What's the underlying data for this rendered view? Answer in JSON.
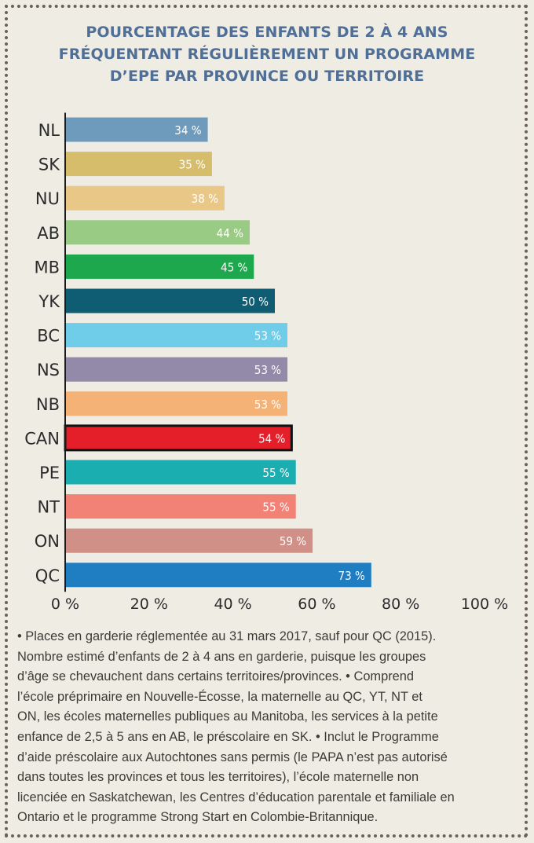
{
  "title_lines": [
    "POURCENTAGE DES ENFANTS DE 2 À 4 ANS",
    "FRÉQUENTANT RÉGULIÈREMENT UN PROGRAMME",
    "D’EPE PAR PROVINCE OU TERRITOIRE"
  ],
  "chart_data": {
    "type": "bar",
    "orientation": "horizontal",
    "title": "POURCENTAGE DES ENFANTS DE 2 À 4 ANS FRÉQUENTANT RÉGULIÈREMENT UN PROGRAMME D’EPE PAR PROVINCE OU TERRITOIRE",
    "categories": [
      "NL",
      "SK",
      "NU",
      "AB",
      "MB",
      "YK",
      "BC",
      "NS",
      "NB",
      "CAN",
      "PE",
      "NT",
      "ON",
      "QC"
    ],
    "values": [
      34,
      35,
      38,
      44,
      45,
      50,
      53,
      53,
      53,
      54,
      55,
      55,
      59,
      73
    ],
    "value_labels": [
      "34 %",
      "35 %",
      "38 %",
      "44 %",
      "45 %",
      "50 %",
      "53 %",
      "53 %",
      "53 %",
      "54 %",
      "55 %",
      "55 %",
      "59 %",
      "73 %"
    ],
    "colors": [
      "#6e9bbb",
      "#d6bd6b",
      "#e9c787",
      "#9acb84",
      "#1ea84e",
      "#0f5d73",
      "#6fcde9",
      "#928aa8",
      "#f5b277",
      "#e41f2a",
      "#1aaeb0",
      "#f28275",
      "#d19087",
      "#1f7dc1"
    ],
    "highlight": "CAN",
    "highlight_border": "#111111",
    "xlim": [
      0,
      100
    ],
    "xticks": [
      0,
      20,
      40,
      60,
      80,
      100
    ],
    "xtick_labels": [
      "0 %",
      "20 %",
      "40 %",
      "60 %",
      "80 %",
      "100 %"
    ],
    "grid": false,
    "xlabel": "",
    "ylabel": ""
  },
  "notes": [
    "• Places en garderie réglementée au 31 mars 2017, sauf pour QC (2015).",
    "Nombre estimé d’enfants de 2 à 4 ans en garderie, puisque les groupes",
    "d’âge se chevauchent dans certains territoires/provinces. • Comprend",
    "l’école préprimaire en Nouvelle-Écosse, la maternelle au QC, YT, NT et",
    "ON, les écoles maternelles publiques au Manitoba, les services à la petite",
    "enfance de 2,5 à 5 ans en AB, le préscolaire en SK. • Inclut le Programme",
    "d’aide préscolaire aux Autochtones sans permis (le PAPA n’est pas autorisé",
    "dans toutes les provinces et tous les territoires), l’école maternelle non",
    "licenciée en Saskatchewan, les Centres d’éducation parentale et familiale en",
    "Ontario et le programme Strong Start en Colombie-Britannique."
  ]
}
